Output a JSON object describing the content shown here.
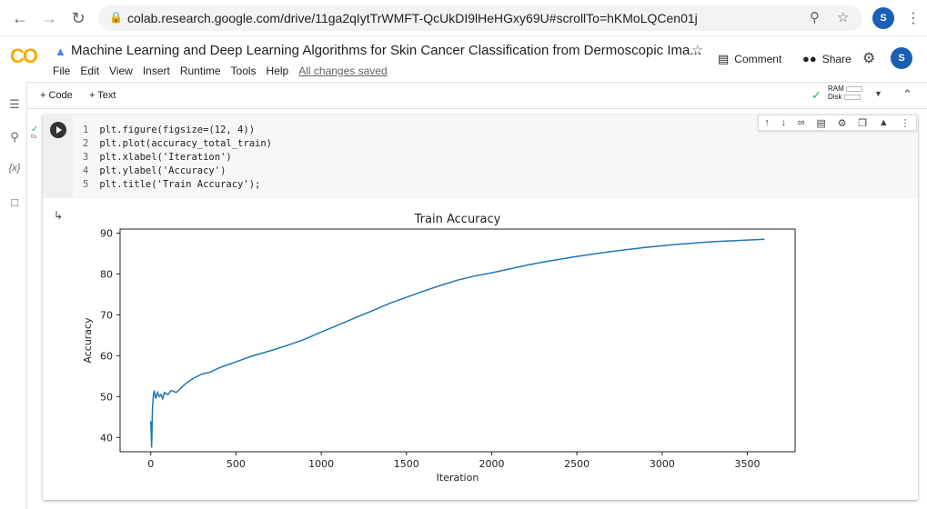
{
  "browser": {
    "url": "colab.research.google.com/drive/11ga2qIytTrWMFT-QcUkDI9lHeHGxy69U#scrollTo=hKMoLQCen01j",
    "profile_initial": "S"
  },
  "colab": {
    "logo": "CO",
    "title": "Machine Learning and Deep Learning Algorithms for Skin Cancer Classification from Dermoscopic Ima...",
    "menu": [
      "File",
      "Edit",
      "View",
      "Insert",
      "Runtime",
      "Tools",
      "Help"
    ],
    "save_status": "All changes saved",
    "comment_label": "Comment",
    "share_label": "Share",
    "profile_initial": "S"
  },
  "toolbar": {
    "add_code": "+ Code",
    "add_text": "+ Text",
    "ram_label": "RAM",
    "disk_label": "Disk"
  },
  "cell": {
    "exec_time": "0s",
    "code_lines": [
      {
        "n": "1",
        "text": "plt.figure(figsize=(12, 4))"
      },
      {
        "n": "2",
        "text": "plt.plot(accuracy_total_train)"
      },
      {
        "n": "3",
        "text": "plt.xlabel('Iteration')"
      },
      {
        "n": "4",
        "text": "plt.ylabel('Accuracy')"
      },
      {
        "n": "5",
        "text": "plt.title('Train Accuracy');"
      }
    ]
  },
  "chart_data": {
    "type": "line",
    "title": "Train Accuracy",
    "xlabel": "Iteration",
    "ylabel": "Accuracy",
    "xlim": [
      -180,
      3780
    ],
    "ylim": [
      36.5,
      91
    ],
    "xticks": [
      0,
      500,
      1000,
      1500,
      2000,
      2500,
      3000,
      3500
    ],
    "yticks": [
      40,
      50,
      60,
      70,
      80,
      90
    ],
    "series": [
      {
        "color": "#1f77b4",
        "x": [
          0,
          5,
          10,
          15,
          20,
          30,
          40,
          50,
          60,
          70,
          80,
          100,
          120,
          150,
          200,
          250,
          300,
          350,
          400,
          500,
          600,
          700,
          800,
          900,
          1000,
          1100,
          1200,
          1300,
          1400,
          1500,
          1600,
          1700,
          1800,
          1900,
          2000,
          2100,
          2200,
          2300,
          2400,
          2500,
          2600,
          2700,
          2800,
          2900,
          3000,
          3100,
          3200,
          3300,
          3400,
          3500,
          3600
        ],
        "y": [
          44,
          37.5,
          47,
          50,
          51.5,
          49.5,
          51,
          50,
          50.5,
          49.5,
          51,
          50.5,
          51.5,
          51,
          53,
          54.5,
          55.5,
          56,
          57,
          58.5,
          60,
          61.2,
          62.5,
          64,
          65.8,
          67.5,
          69.3,
          71,
          72.8,
          74.3,
          75.8,
          77.2,
          78.5,
          79.5,
          80.3,
          81.2,
          82.1,
          82.9,
          83.6,
          84.3,
          84.9,
          85.5,
          86.0,
          86.5,
          86.9,
          87.3,
          87.6,
          87.9,
          88.1,
          88.3,
          88.5
        ]
      }
    ]
  }
}
